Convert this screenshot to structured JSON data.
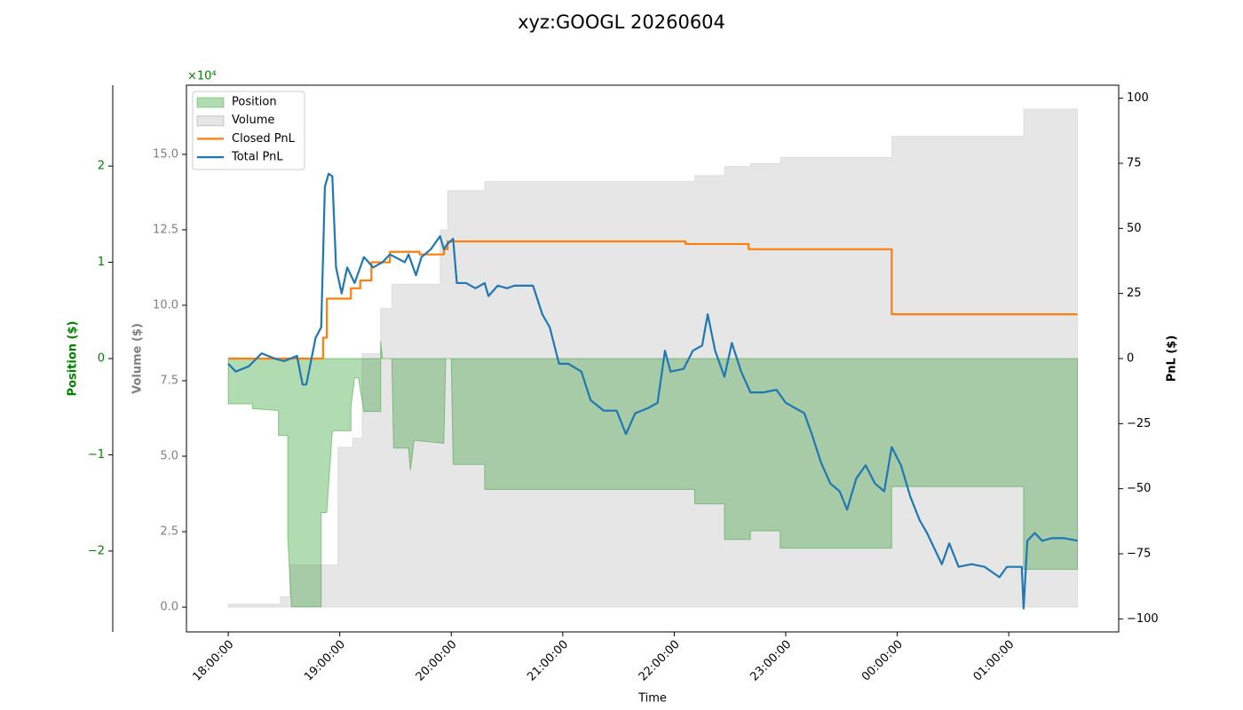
{
  "chart_data": {
    "type": "multi-axis-line-area",
    "title": "xyz:GOOGL 20260604",
    "xlabel": "Time",
    "ylabel": "Position ($)",
    "y2label": "PnL ($)",
    "y3label": "Volume ($)",
    "y_offset_label": "×10⁴",
    "xlim": [
      "17:37:30",
      "01:59:10"
    ],
    "xticks": [
      "18:00:00",
      "19:00:00",
      "20:00:00",
      "21:00:00",
      "22:00:00",
      "23:00:00",
      "00:00:00",
      "01:00:00"
    ],
    "ylim": [
      -2.84,
      2.84
    ],
    "yticks": [
      {
        "value": -2,
        "label": "−2"
      },
      {
        "value": -1,
        "label": "−1"
      },
      0,
      1,
      2
    ],
    "y3lim": [
      -0.82,
      17.29
    ],
    "y3ticks": [
      {
        "value": 0,
        "label": "0.0"
      },
      {
        "value": 2.5,
        "label": "2.5"
      },
      {
        "value": 5,
        "label": "5.0"
      },
      {
        "value": 7.5,
        "label": "7.5"
      },
      {
        "value": 10,
        "label": "10.0"
      },
      {
        "value": 12.5,
        "label": "12.5"
      },
      {
        "value": 15,
        "label": "15.0"
      }
    ],
    "y2lim": [
      -105,
      105
    ],
    "y2ticks": [
      {
        "value": -100,
        "label": "−100"
      },
      {
        "value": -75,
        "label": "−75"
      },
      {
        "value": -50,
        "label": "−50"
      },
      {
        "value": -25,
        "label": "−25"
      },
      0,
      25,
      50,
      75,
      100
    ],
    "legend": "upper left",
    "series": [
      {
        "name": "Position",
        "kind": "area",
        "axis": "y",
        "color": "#2ca02c",
        "x": [
          "18:00:00",
          "18:13:00",
          "18:13:00",
          "18:27:00",
          "18:27:00",
          "18:32:00",
          "18:32:00",
          "18:34:00",
          "18:50:00",
          "18:50:00",
          "18:53:00",
          "18:56:00",
          "19:06:00",
          "19:06:00",
          "19:08:00",
          "19:10:00",
          "19:13:00",
          "19:22:00",
          "19:22:00",
          "19:23:00",
          "19:28:00",
          "19:29:00",
          "19:37:00",
          "19:38:00",
          "19:40:00",
          "19:56:00",
          "19:57:00",
          "20:00:00",
          "20:01:00",
          "20:18:00",
          "20:18:00",
          "22:11:00",
          "22:11:00",
          "22:27:00",
          "22:27:00",
          "22:41:00",
          "22:41:00",
          "22:57:00",
          "22:57:00",
          "23:57:00",
          "23:57:00",
          "01:08:00",
          "01:08:00",
          "01:37:00"
        ],
        "values": [
          -0.47,
          -0.47,
          -0.52,
          -0.54,
          -0.8,
          -0.8,
          -1.85,
          -2.58,
          -2.58,
          -1.6,
          -1.6,
          -0.75,
          -0.75,
          -0.5,
          -0.2,
          -0.2,
          -0.55,
          -0.55,
          0.18,
          0,
          0,
          -0.93,
          -0.93,
          -1.16,
          -0.85,
          -0.88,
          0,
          0,
          -1.1,
          -1.1,
          -1.36,
          -1.36,
          -1.51,
          -1.51,
          -1.88,
          -1.88,
          -1.79,
          -1.79,
          -1.97,
          -1.97,
          -1.33,
          -1.33,
          -2.19,
          -2.19
        ]
      },
      {
        "name": "Volume",
        "kind": "area",
        "axis": "y3",
        "color": "#808080",
        "x": [
          "18:00:00",
          "18:28:00",
          "18:28:00",
          "18:33:00",
          "18:33:00",
          "18:59:00",
          "18:59:00",
          "19:07:00",
          "19:07:00",
          "19:12:00",
          "19:12:00",
          "19:22:00",
          "19:22:00",
          "19:28:00",
          "19:28:00",
          "19:54:00",
          "19:54:00",
          "19:58:00",
          "19:58:00",
          "20:18:00",
          "20:18:00",
          "22:11:00",
          "22:11:00",
          "22:27:00",
          "22:27:00",
          "22:41:00",
          "22:41:00",
          "22:57:00",
          "22:57:00",
          "23:57:00",
          "23:57:00",
          "01:08:00",
          "01:08:00",
          "01:37:00"
        ],
        "values": [
          0.1,
          0.1,
          0.35,
          0.35,
          1.4,
          1.4,
          5.3,
          5.3,
          5.6,
          5.6,
          8.4,
          8.4,
          9.9,
          9.9,
          10.7,
          10.7,
          12.5,
          12.5,
          13.8,
          13.8,
          14.1,
          14.1,
          14.3,
          14.3,
          14.6,
          14.6,
          14.7,
          14.7,
          14.9,
          14.9,
          15.6,
          15.6,
          16.5,
          16.5
        ]
      },
      {
        "name": "Closed PnL",
        "kind": "line",
        "axis": "y2",
        "color": "#ff7f0e",
        "x": [
          "18:00:00",
          "18:51:00",
          "18:51:00",
          "18:53:00",
          "18:53:00",
          "19:06:00",
          "19:06:00",
          "19:11:00",
          "19:11:00",
          "19:17:00",
          "19:17:00",
          "19:27:00",
          "19:27:00",
          "19:43:00",
          "19:43:00",
          "19:56:00",
          "19:56:00",
          "19:58:00",
          "19:58:00",
          "22:06:00",
          "22:06:00",
          "22:40:00",
          "22:40:00",
          "23:57:00",
          "23:57:00",
          "01:37:00"
        ],
        "values": [
          0,
          0,
          8,
          8,
          23,
          23,
          27,
          27,
          30,
          30,
          37,
          37,
          41,
          41,
          40,
          40,
          42,
          42,
          45,
          45,
          44,
          44,
          42,
          42,
          17,
          17
        ]
      },
      {
        "name": "Total PnL",
        "kind": "line",
        "axis": "y2",
        "color": "#1f77b4",
        "x": [
          "18:00:00",
          "18:04:00",
          "18:11:00",
          "18:18:00",
          "18:25:00",
          "18:30:00",
          "18:37:00",
          "18:40:00",
          "18:42:00",
          "18:47:00",
          "18:50:00",
          "18:52:00",
          "18:54:00",
          "18:56:00",
          "18:58:00",
          "19:01:00",
          "19:04:00",
          "19:08:00",
          "19:13:00",
          "19:18:00",
          "19:23:00",
          "19:27:00",
          "19:35:00",
          "19:37:00",
          "19:41:00",
          "19:44:00",
          "19:49:00",
          "19:54:00",
          "19:56:00",
          "19:58:00",
          "20:01:00",
          "20:03:00",
          "20:08:00",
          "20:13:00",
          "20:18:00",
          "20:20:00",
          "20:25:00",
          "20:30:00",
          "20:34:00",
          "20:44:00",
          "20:49:00",
          "20:53:00",
          "20:58:00",
          "21:03:00",
          "21:10:00",
          "21:15:00",
          "21:22:00",
          "21:29:00",
          "21:34:00",
          "21:39:00",
          "21:46:00",
          "21:51:00",
          "21:55:00",
          "21:58:00",
          "22:05:00",
          "22:10:00",
          "22:15:00",
          "22:18:00",
          "22:22:00",
          "22:27:00",
          "22:31:00",
          "22:36:00",
          "22:41:00",
          "22:48:00",
          "22:55:00",
          "23:00:00",
          "23:05:00",
          "23:10:00",
          "23:14:00",
          "23:19:00",
          "23:24:00",
          "23:29:00",
          "23:33:00",
          "23:38:00",
          "23:43:00",
          "23:48:00",
          "23:53:00",
          "23:57:00",
          "00:02:00",
          "00:07:00",
          "00:12:00",
          "00:16:00",
          "00:24:00",
          "00:28:00",
          "00:33:00",
          "00:40:00",
          "00:47:00",
          "00:55:00",
          "00:59:00",
          "01:07:00",
          "01:08:00",
          "01:10:00",
          "01:14:00",
          "01:18:00",
          "01:23:00",
          "01:30:00",
          "01:37:00"
        ],
        "values": [
          -2,
          -5,
          -3,
          2,
          0,
          -1,
          1,
          -10,
          -10,
          8,
          12,
          66,
          71,
          70,
          35,
          25,
          35,
          29,
          39,
          35,
          37,
          40,
          37,
          40,
          32,
          39,
          42,
          47,
          42,
          44,
          46,
          29,
          29,
          27,
          29,
          24,
          28,
          27,
          28,
          28,
          17,
          12,
          -2,
          -2,
          -5,
          -16,
          -20,
          -20,
          -29,
          -21,
          -19,
          -17,
          3,
          -5,
          -4,
          3,
          5,
          17,
          3,
          -7,
          6,
          -5,
          -13,
          -13,
          -12,
          -17,
          -19,
          -21,
          -29,
          -40,
          -48,
          -51,
          -58,
          -46,
          -41,
          -48,
          -51,
          -34,
          -41,
          -53,
          -62,
          -67,
          -79,
          -71,
          -80,
          -79,
          -80,
          -84,
          -80,
          -80,
          -96,
          -70,
          -67,
          -70,
          -69,
          -69,
          -70
        ]
      }
    ]
  }
}
